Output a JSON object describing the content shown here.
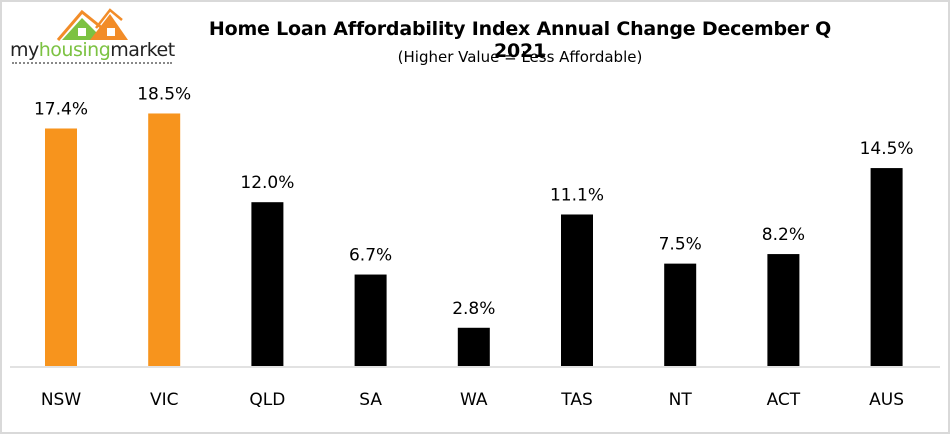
{
  "logo": {
    "text_prefix": "my",
    "text_middle": "housing",
    "text_suffix": "market",
    "colors": {
      "house_green": "#7cc242",
      "house_orange": "#f28c28"
    }
  },
  "chart_data": {
    "type": "bar",
    "title": "Home Loan Affordability Index Annual Change December Q 2021",
    "subtitle": "(Higher Value = Less Affordable)",
    "xlabel": "",
    "ylabel": "",
    "categories": [
      "NSW",
      "VIC",
      "QLD",
      "SA",
      "WA",
      "TAS",
      "NT",
      "ACT",
      "AUS"
    ],
    "values": [
      17.4,
      18.5,
      12.0,
      6.7,
      2.8,
      11.1,
      7.5,
      8.2,
      14.5
    ],
    "data_labels": [
      "17.4%",
      "18.5%",
      "12.0%",
      "6.7%",
      "2.8%",
      "11.1%",
      "7.5%",
      "8.2%",
      "14.5%"
    ],
    "bar_colors": [
      "#f7941d",
      "#f7941d",
      "#000000",
      "#000000",
      "#000000",
      "#000000",
      "#000000",
      "#000000",
      "#000000"
    ],
    "ylim": [
      0,
      18.5
    ],
    "unit": "%",
    "grid": false,
    "legend": "none",
    "axis_color": "#d9d9d9"
  }
}
